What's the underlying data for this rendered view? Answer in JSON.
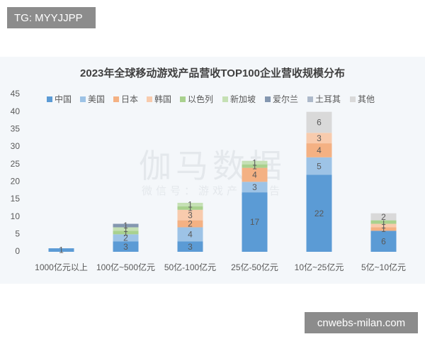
{
  "badge_top": "TG: MYYJJPP",
  "badge_bottom": "cnwebs-milan.com",
  "watermark": {
    "name": "伽马数据",
    "sub": "微信号：游戏产业报告"
  },
  "chart_data": {
    "type": "bar",
    "stacked": true,
    "title": "2023年全球移动游戏产品营收TOP100企业营收规模分布",
    "categories": [
      "1000亿元以上",
      "100亿~500亿元",
      "50亿-100亿元",
      "25亿-50亿元",
      "10亿~25亿元",
      "5亿~10亿元"
    ],
    "series": [
      {
        "name": "中国",
        "color": "#5b9bd5",
        "values": [
          1,
          3,
          3,
          17,
          22,
          6
        ]
      },
      {
        "name": "美国",
        "color": "#9dc3e6",
        "values": [
          0,
          2,
          4,
          3,
          5,
          0
        ]
      },
      {
        "name": "日本",
        "color": "#f4b183",
        "values": [
          0,
          0,
          2,
          4,
          4,
          1
        ]
      },
      {
        "name": "韩国",
        "color": "#f8cbad",
        "values": [
          0,
          0,
          3,
          0,
          3,
          1
        ]
      },
      {
        "name": "以色列",
        "color": "#a9d18e",
        "values": [
          0,
          1,
          1,
          1,
          0,
          1
        ]
      },
      {
        "name": "新加坡",
        "color": "#c5e0b4",
        "values": [
          0,
          1,
          1,
          1,
          0,
          0
        ]
      },
      {
        "name": "爱尔兰",
        "color": "#8497b0",
        "values": [
          0,
          1,
          0,
          0,
          0,
          0
        ]
      },
      {
        "name": "土耳其",
        "color": "#adb9ca",
        "values": [
          0,
          0,
          0,
          0,
          0,
          0
        ]
      },
      {
        "name": "其他",
        "color": "#d9d9d9",
        "values": [
          0,
          0,
          0,
          0,
          6,
          2
        ]
      }
    ],
    "ylim": [
      0,
      45
    ],
    "yticks": [
      0,
      5,
      10,
      15,
      20,
      25,
      30,
      35,
      40,
      45
    ],
    "grid": false
  }
}
